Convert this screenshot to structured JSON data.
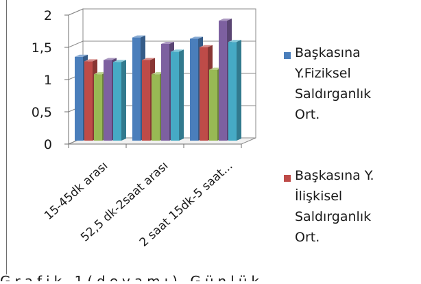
{
  "chart_data": {
    "type": "bar",
    "categories": [
      "15-45dk arası",
      "52,5 dk-2saat arası",
      "2 saat 15dk-5 saat..."
    ],
    "series": [
      {
        "name": "Başkasına Y.Fiziksel Saldırganlık Ort.",
        "values": [
          1.3,
          1.6,
          1.58
        ],
        "color": "#4a7ebb"
      },
      {
        "name": "Başkasına Y. İlişkisel Saldırganlık Ort.",
        "values": [
          1.23,
          1.25,
          1.45
        ],
        "color": "#be4b48"
      },
      {
        "name": "",
        "values": [
          1.03,
          1.03,
          1.1
        ],
        "color": "#98b954"
      },
      {
        "name": "",
        "values": [
          1.25,
          1.5,
          1.86
        ],
        "color": "#7d60a0"
      },
      {
        "name": "",
        "values": [
          1.22,
          1.38,
          1.53
        ],
        "color": "#46aac5"
      }
    ],
    "yticks": [
      "0",
      "0,5",
      "1",
      "1,5",
      "2"
    ],
    "ylim": [
      0,
      2
    ],
    "grid": true,
    "legend_position": "right",
    "title": "",
    "xlabel": "",
    "ylabel": ""
  },
  "legend": {
    "items": [
      {
        "label": "Başkasına\nY.Fiziksel\nSaldırganlık\nOrt.",
        "color": "#4a7ebb"
      },
      {
        "label": "Başkasına Y.\nİlişkisel\nSaldırganlık\nOrt.",
        "color": "#be4b48"
      }
    ]
  },
  "caption": {
    "text": "Grafik 1(devamı) Günlük..."
  }
}
